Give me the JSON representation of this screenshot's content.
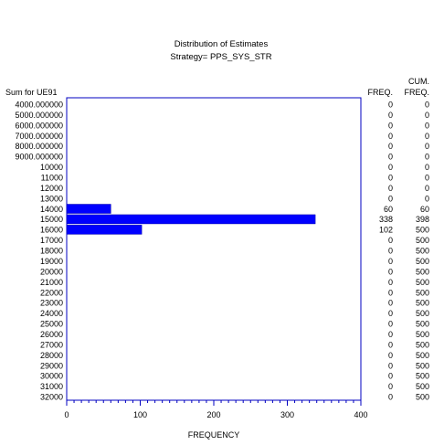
{
  "chart_data": {
    "type": "bar",
    "orientation": "horizontal",
    "title": "Distribution of Estimates",
    "subtitle": "Strategy= PPS_SYS_STR",
    "ylabel": "Sum for UE91",
    "xlabel": "FREQUENCY",
    "freq_header": "FREQ.",
    "cum_header_line1": "CUM.",
    "cum_header_line2": "FREQ.",
    "xlim": [
      0,
      400
    ],
    "xticks": [
      "0",
      "100",
      "200",
      "300",
      "400"
    ],
    "bar_color": "#0000ff",
    "frame_color": "#0000c0",
    "categories": [
      "4000.000000",
      "5000.000000",
      "6000.000000",
      "7000.000000",
      "8000.000000",
      "9000.000000",
      "10000",
      "11000",
      "12000",
      "13000",
      "14000",
      "15000",
      "16000",
      "17000",
      "18000",
      "19000",
      "20000",
      "21000",
      "22000",
      "23000",
      "24000",
      "25000",
      "26000",
      "27000",
      "28000",
      "29000",
      "30000",
      "31000",
      "32000"
    ],
    "values": [
      0,
      0,
      0,
      0,
      0,
      0,
      0,
      0,
      0,
      0,
      60,
      338,
      102,
      0,
      0,
      0,
      0,
      0,
      0,
      0,
      0,
      0,
      0,
      0,
      0,
      0,
      0,
      0,
      0
    ],
    "freq_labels": [
      "0",
      "0",
      "0",
      "0",
      "0",
      "0",
      "0",
      "0",
      "0",
      "0",
      "60",
      "338",
      "102",
      "0",
      "0",
      "0",
      "0",
      "0",
      "0",
      "0",
      "0",
      "0",
      "0",
      "0",
      "0",
      "0",
      "0",
      "0",
      "0"
    ],
    "cum_labels": [
      "0",
      "0",
      "0",
      "0",
      "0",
      "0",
      "0",
      "0",
      "0",
      "0",
      "60",
      "398",
      "500",
      "500",
      "500",
      "500",
      "500",
      "500",
      "500",
      "500",
      "500",
      "500",
      "500",
      "500",
      "500",
      "500",
      "500",
      "500",
      "500"
    ]
  }
}
